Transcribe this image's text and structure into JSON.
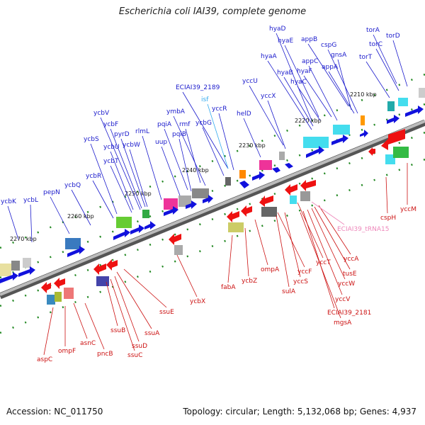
{
  "title": "Escherichia coli IAI39, complete genome",
  "footer": {
    "accession": "Accession: NC_011750",
    "summary": "Topology: circular; Length: 5,132,068 bp; Genes: 4,937"
  },
  "colors": {
    "forward_label": "#1a1acc",
    "reverse_label": "#cc1111",
    "rna_label": "#ee88bb",
    "misc_label": "#33aaee",
    "backbone": "#999999"
  },
  "ticks": [
    "2210 kbp",
    "2220 kbp",
    "2230 kbp",
    "2240 kbp",
    "2250 kbp",
    "2260 kbp",
    "2270 kbp"
  ],
  "forward_genes": [
    "torA",
    "torD",
    "torC",
    "torT",
    "appB",
    "cspG",
    "gnsA",
    "appC",
    "appA",
    "hyaD",
    "hyaE",
    "hyaF",
    "hyaA",
    "hyaB",
    "hyaC",
    "yccU",
    "yccX",
    "helD",
    "ECIAI39_2189",
    "yccR",
    "ycbG",
    "ymbA",
    "rmf",
    "pqiA",
    "pqiB",
    "uup",
    "rlmL",
    "ycbV",
    "ycbF",
    "pyrD",
    "ycbU",
    "ycbW",
    "ycbS",
    "ycbT",
    "ycbR",
    "ycbQ",
    "pepN",
    "ycbK",
    "ycbL"
  ],
  "misc_genes": [
    "isf"
  ],
  "reverse_genes": [
    "cspH",
    "yccM",
    "yccA",
    "tusE",
    "yccW",
    "yccV",
    "ECIAI39_2181",
    "mgsA",
    "yccT",
    "yccS",
    "sulA",
    "yccF",
    "ompA",
    "ycbZ",
    "fabA",
    "ycbX",
    "ssuE",
    "ssuA",
    "ssuD",
    "ssuC",
    "ssuB",
    "pncB",
    "asnC",
    "ompF",
    "aspC"
  ],
  "rna_genes": [
    "ECIAI39_tRNA15"
  ]
}
